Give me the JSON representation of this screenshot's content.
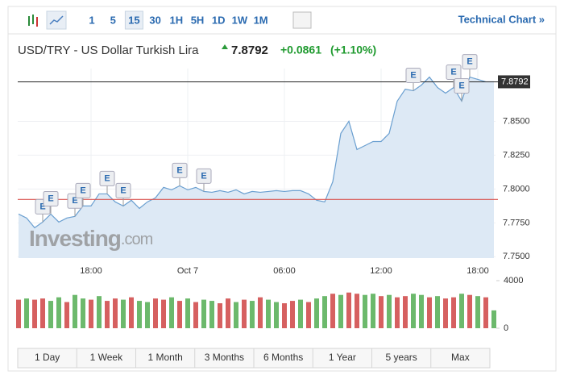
{
  "toolbar": {
    "intervals": [
      "1",
      "5",
      "15",
      "30",
      "1H",
      "5H",
      "1D",
      "1W",
      "1M"
    ],
    "selected": 2,
    "link": "Technical Chart »"
  },
  "header": {
    "title": "USD/TRY - US Dollar Turkish Lira",
    "price": "7.8792",
    "change": "+0.0861",
    "change_percent": "(+1.10%)"
  },
  "watermark": {
    "brand": "Investing",
    "suffix": ".com"
  },
  "ranges": [
    "1 Day",
    "1 Week",
    "1 Month",
    "3 Months",
    "6 Months",
    "1 Year",
    "5 years",
    "Max"
  ],
  "chart_data": [
    {
      "type": "area",
      "color": "#6a9fd0",
      "fill": "#dde9f5",
      "categories": [
        null,
        null,
        null,
        null,
        null,
        null,
        null,
        null,
        null,
        "18:00",
        null,
        null,
        null,
        null,
        null,
        null,
        null,
        null,
        null,
        null,
        null,
        "Oct 7",
        null,
        null,
        null,
        null,
        null,
        null,
        null,
        null,
        null,
        null,
        null,
        "06:00",
        null,
        null,
        null,
        null,
        null,
        null,
        null,
        null,
        null,
        null,
        null,
        "12:00",
        null,
        null,
        null,
        null,
        null,
        null,
        null,
        null,
        null,
        null,
        null,
        "18:00",
        null,
        null
      ],
      "values": [
        7.7815,
        7.7786,
        7.7714,
        7.7756,
        7.7815,
        7.7756,
        7.7786,
        7.7798,
        7.7875,
        7.7875,
        7.7964,
        7.7964,
        7.7905,
        7.7875,
        7.7917,
        7.7857,
        7.7905,
        7.7935,
        7.8012,
        7.7994,
        7.8024,
        7.7994,
        7.8012,
        7.7982,
        7.7976,
        7.7988,
        7.7976,
        7.7994,
        7.7964,
        7.7982,
        7.7976,
        7.7982,
        7.7988,
        7.7982,
        7.7988,
        7.7988,
        7.7964,
        7.7917,
        7.7905,
        7.8054,
        7.8411,
        7.85,
        7.8292,
        7.8321,
        7.8351,
        7.8351,
        7.8411,
        7.8649,
        7.8738,
        7.8726,
        7.8768,
        7.8827,
        7.875,
        7.8708,
        7.875,
        7.8649,
        7.8827,
        7.881,
        7.8792,
        7.8792
      ],
      "ylim": [
        7.749,
        7.889
      ],
      "yticks": [
        {
          "value": 7.75,
          "label": "7.7500"
        },
        {
          "value": 7.775,
          "label": "7.7750"
        },
        {
          "value": 7.8,
          "label": "7.8000"
        },
        {
          "value": 7.825,
          "label": "7.8250"
        },
        {
          "value": 7.85,
          "label": "7.8500"
        }
      ],
      "last_price": {
        "value": 7.8792,
        "label": "7.8792"
      },
      "reference_line": {
        "value": 7.7923,
        "color": "#d9534f"
      },
      "events": [
        {
          "at": 3,
          "label": "E"
        },
        {
          "at": 4,
          "label": "E"
        },
        {
          "at": 7,
          "label": "E"
        },
        {
          "at": 8,
          "label": "E"
        },
        {
          "at": 11,
          "label": "E"
        },
        {
          "at": 13,
          "label": "E"
        },
        {
          "at": 20,
          "label": "E"
        },
        {
          "at": 23,
          "label": "E"
        },
        {
          "at": 49,
          "label": "E"
        },
        {
          "at": 54,
          "label": "E"
        },
        {
          "at": 55,
          "label": "E"
        },
        {
          "at": 56,
          "label": "E"
        }
      ],
      "grid": true
    },
    {
      "type": "bar",
      "values": [
        2400,
        2500,
        2400,
        2500,
        2300,
        2600,
        2200,
        2800,
        2500,
        2400,
        2700,
        2300,
        2500,
        2400,
        2600,
        2300,
        2200,
        2500,
        2400,
        2600,
        2300,
        2500,
        2200,
        2400,
        2300,
        2100,
        2500,
        2200,
        2400,
        2300,
        2600,
        2400,
        2200,
        2100,
        2300,
        2400,
        2200,
        2500,
        2700,
        2900,
        2800,
        3000,
        2900,
        2800,
        2900,
        2700,
        2800,
        2600,
        2700,
        2900,
        2800,
        2600,
        2700,
        2500,
        2600,
        2900,
        2800,
        2700,
        2600,
        1500
      ],
      "colors": [
        "#d66060",
        "#6cb96c",
        "#d66060",
        "#d66060",
        "#6cb96c",
        "#6cb96c",
        "#d66060",
        "#6cb96c",
        "#6cb96c",
        "#d66060",
        "#6cb96c",
        "#d66060",
        "#d66060",
        "#6cb96c",
        "#d66060",
        "#6cb96c",
        "#6cb96c",
        "#d66060",
        "#d66060",
        "#6cb96c",
        "#d66060",
        "#6cb96c",
        "#d66060",
        "#6cb96c",
        "#6cb96c",
        "#d66060",
        "#d66060",
        "#6cb96c",
        "#d66060",
        "#6cb96c",
        "#d66060",
        "#6cb96c",
        "#6cb96c",
        "#d66060",
        "#d66060",
        "#6cb96c",
        "#d66060",
        "#6cb96c",
        "#6cb96c",
        "#d66060",
        "#6cb96c",
        "#d66060",
        "#d66060",
        "#6cb96c",
        "#6cb96c",
        "#d66060",
        "#6cb96c",
        "#d66060",
        "#d66060",
        "#6cb96c",
        "#6cb96c",
        "#d66060",
        "#6cb96c",
        "#d66060",
        "#d66060",
        "#6cb96c",
        "#d66060",
        "#6cb96c",
        "#d66060",
        "#6cb96c"
      ],
      "ylim": [
        0,
        4000
      ],
      "yticks": [
        0,
        4000
      ]
    }
  ]
}
